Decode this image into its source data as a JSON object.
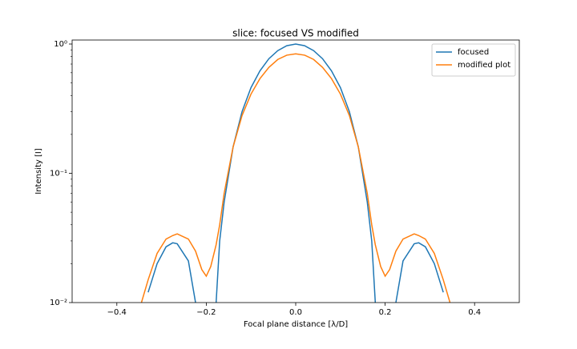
{
  "chart_data": {
    "type": "line",
    "title": "slice: focused VS modified",
    "xlabel": "Focal plane distance [λ/D]",
    "ylabel": "Intensity [I]",
    "x": [
      -0.345,
      -0.33,
      -0.31,
      -0.29,
      -0.275,
      -0.265,
      -0.24,
      -0.224,
      -0.21,
      -0.2,
      -0.19,
      -0.178,
      -0.17,
      -0.16,
      -0.14,
      -0.12,
      -0.1,
      -0.08,
      -0.06,
      -0.04,
      -0.02,
      0,
      0.02,
      0.04,
      0.06,
      0.08,
      0.1,
      0.12,
      0.14,
      0.16,
      0.17,
      0.178,
      0.19,
      0.2,
      0.21,
      0.224,
      0.24,
      0.265,
      0.275,
      0.29,
      0.31,
      0.33,
      0.345
    ],
    "series": [
      {
        "name": "focused",
        "color": "#1f77b4",
        "values": [
          null,
          0.012,
          0.02,
          0.027,
          0.029,
          0.0285,
          0.021,
          0.01,
          null,
          null,
          null,
          0.01,
          0.03,
          0.06,
          0.16,
          0.3,
          0.46,
          0.62,
          0.77,
          0.89,
          0.97,
          1.0,
          0.97,
          0.89,
          0.77,
          0.62,
          0.46,
          0.3,
          0.16,
          0.06,
          0.03,
          0.01,
          null,
          null,
          null,
          0.01,
          0.021,
          0.0285,
          0.029,
          0.027,
          0.02,
          0.012,
          null
        ]
      },
      {
        "name": "modified plot",
        "color": "#ff7f0e",
        "values": [
          0.01,
          0.015,
          0.024,
          0.031,
          0.033,
          0.034,
          0.031,
          0.025,
          0.018,
          0.016,
          0.019,
          0.028,
          0.04,
          0.07,
          0.16,
          0.28,
          0.41,
          0.54,
          0.66,
          0.76,
          0.82,
          0.84,
          0.82,
          0.76,
          0.66,
          0.54,
          0.41,
          0.28,
          0.16,
          0.07,
          0.04,
          0.028,
          0.019,
          0.016,
          0.018,
          0.025,
          0.031,
          0.034,
          0.033,
          0.031,
          0.024,
          0.015,
          0.01
        ]
      }
    ],
    "xlim": [
      -0.5,
      0.5
    ],
    "xticks": [
      {
        "value": -0.4,
        "label": "−0.4"
      },
      {
        "value": -0.2,
        "label": "−0.2"
      },
      {
        "value": 0,
        "label": "0.0"
      },
      0.2,
      0.4
    ],
    "ylim": [
      0.01,
      1.074
    ],
    "ylog": true,
    "yticks": [
      {
        "value": 0.01,
        "label": "10⁻²"
      },
      {
        "value": 0.1,
        "label": "10⁻¹"
      },
      {
        "value": 1,
        "label": "10⁰"
      }
    ],
    "yminorticks": [
      0.02,
      0.03,
      0.04,
      0.05,
      0.06,
      0.07,
      0.08,
      0.09,
      0.2,
      0.3,
      0.4,
      0.5,
      0.6,
      0.7,
      0.8,
      0.9
    ],
    "grid": false,
    "legend": "upper right"
  }
}
